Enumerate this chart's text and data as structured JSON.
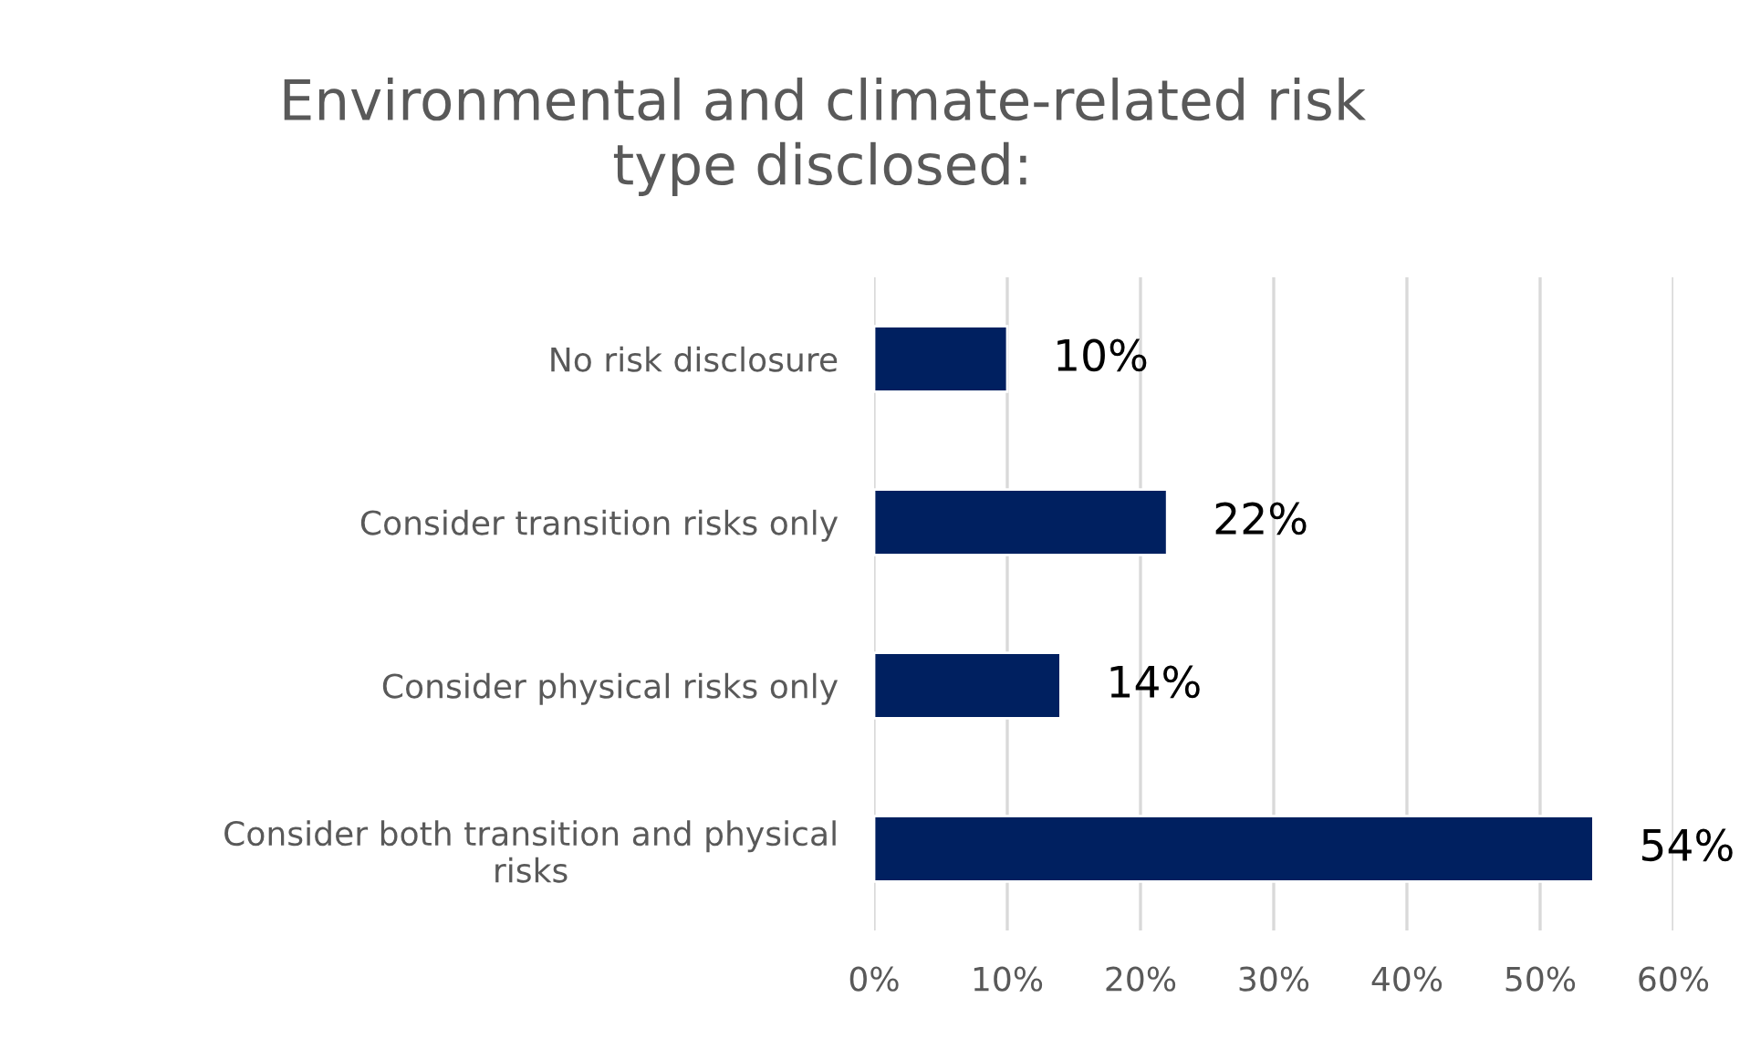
{
  "chart_data": {
    "type": "bar",
    "orientation": "horizontal",
    "title": "Environmental and climate-related risk\ntype disclosed:",
    "categories": [
      "No risk disclosure",
      "Consider transition risks only",
      "Consider physical risks only",
      "Consider both transition and physical\nrisks"
    ],
    "values": [
      10,
      22,
      14,
      54
    ],
    "value_labels": [
      "10%",
      "22%",
      "14%",
      "54%"
    ],
    "color": "#002060",
    "xlim": [
      0,
      60
    ],
    "xticks": [
      {
        "value": 0,
        "label": "0%"
      },
      {
        "value": 10,
        "label": "10%"
      },
      {
        "value": 20,
        "label": "20%"
      },
      {
        "value": 30,
        "label": "30%"
      },
      {
        "value": 40,
        "label": "40%"
      },
      {
        "value": 50,
        "label": "50%"
      },
      {
        "value": 60,
        "label": "60%"
      }
    ],
    "grid": "x",
    "legend": false
  }
}
